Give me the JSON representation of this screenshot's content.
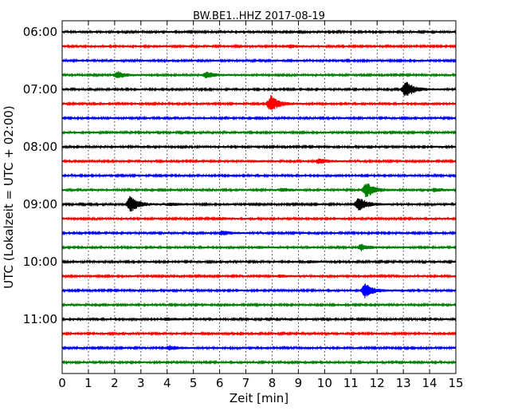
{
  "chart_data": {
    "type": "line",
    "title": "BW.BE1..HHZ 2017-08-19",
    "xlabel": "Zeit  [min]",
    "ylabel": "UTC (Lokalzeit = UTC + 02:00)",
    "xlim": [
      0,
      15
    ],
    "x_ticks": [
      "0",
      "1",
      "2",
      "3",
      "4",
      "5",
      "6",
      "7",
      "8",
      "9",
      "10",
      "11",
      "12",
      "13",
      "14",
      "15"
    ],
    "y_ticks": [
      "06:00",
      "07:00",
      "08:00",
      "09:00",
      "10:00",
      "11:00"
    ],
    "grid": "vertical dotted",
    "trace_colors": [
      "#000000",
      "#ff0000",
      "#0000ff",
      "#008000"
    ],
    "traces": [
      {
        "start": "06:00",
        "events": []
      },
      {
        "start": "06:15",
        "events": [
          {
            "t": 8.7,
            "amp": 0.15
          }
        ]
      },
      {
        "start": "06:30",
        "events": []
      },
      {
        "start": "06:45",
        "events": [
          {
            "t": 2.1,
            "amp": 0.4
          },
          {
            "t": 5.5,
            "amp": 0.35
          }
        ]
      },
      {
        "start": "07:00",
        "events": [
          {
            "t": 13.1,
            "amp": 1.0
          }
        ]
      },
      {
        "start": "07:15",
        "events": [
          {
            "t": 7.95,
            "amp": 1.0
          }
        ]
      },
      {
        "start": "07:30",
        "events": []
      },
      {
        "start": "07:45",
        "events": []
      },
      {
        "start": "08:00",
        "events": []
      },
      {
        "start": "08:15",
        "events": [
          {
            "t": 9.8,
            "amp": 0.3
          },
          {
            "t": 7.2,
            "amp": 0.1
          }
        ]
      },
      {
        "start": "08:30",
        "events": []
      },
      {
        "start": "08:45",
        "events": [
          {
            "t": 8.4,
            "amp": 0.2
          },
          {
            "t": 11.6,
            "amp": 0.9
          },
          {
            "t": 14.2,
            "amp": 0.2
          }
        ]
      },
      {
        "start": "09:00",
        "events": [
          {
            "t": 2.6,
            "amp": 1.0
          },
          {
            "t": 11.3,
            "amp": 0.9
          },
          {
            "t": 4.1,
            "amp": 0.15
          }
        ]
      },
      {
        "start": "09:15",
        "events": [
          {
            "t": 6.0,
            "amp": 0.12
          }
        ]
      },
      {
        "start": "09:30",
        "events": [
          {
            "t": 6.1,
            "amp": 0.25
          }
        ]
      },
      {
        "start": "09:45",
        "events": [
          {
            "t": 11.4,
            "amp": 0.35
          },
          {
            "t": 7.5,
            "amp": 0.1
          }
        ]
      },
      {
        "start": "10:00",
        "events": [
          {
            "t": 9.4,
            "amp": 0.12
          }
        ]
      },
      {
        "start": "10:15",
        "events": [
          {
            "t": 8.3,
            "amp": 0.12
          }
        ]
      },
      {
        "start": "10:30",
        "events": [
          {
            "t": 11.55,
            "amp": 0.9
          }
        ]
      },
      {
        "start": "10:45",
        "events": []
      },
      {
        "start": "11:00",
        "events": [
          {
            "t": 4.0,
            "amp": 0.15
          }
        ]
      },
      {
        "start": "11:15",
        "events": []
      },
      {
        "start": "11:30",
        "events": [
          {
            "t": 4.1,
            "amp": 0.25
          }
        ]
      },
      {
        "start": "11:45",
        "events": []
      }
    ]
  }
}
